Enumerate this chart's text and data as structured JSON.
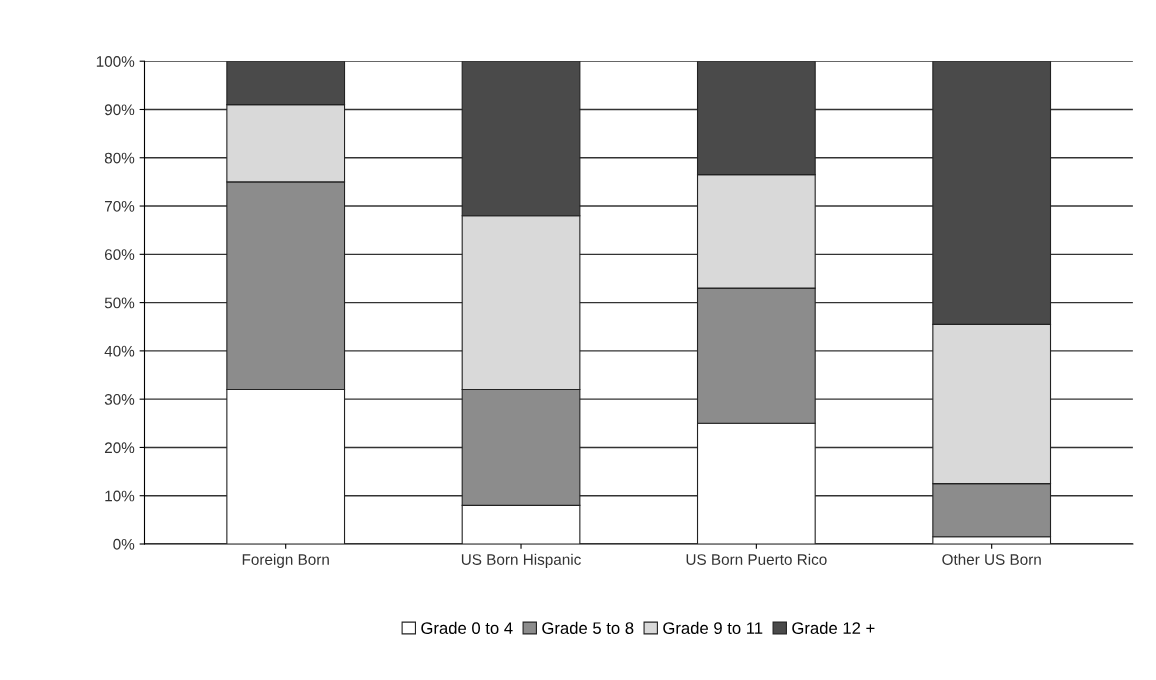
{
  "chart_data": {
    "type": "bar",
    "stacked": true,
    "categories": [
      "Foreign Born",
      "US Born Hispanic",
      "US Born Puerto Rico",
      "Other US Born"
    ],
    "series": [
      {
        "name": "Grade 0 to 4",
        "color": "#ffffff",
        "values": [
          32,
          8,
          25,
          1.5
        ]
      },
      {
        "name": "Grade 5 to 8",
        "color": "#8c8c8c",
        "values": [
          43,
          24,
          28,
          11
        ]
      },
      {
        "name": "Grade 9 to 11",
        "color": "#d9d9d9",
        "values": [
          16,
          36,
          23.5,
          33
        ]
      },
      {
        "name": "Grade 12 +",
        "color": "#4a4a4a",
        "values": [
          9,
          32,
          23.5,
          54.5
        ]
      }
    ],
    "ylim": [
      0,
      100
    ],
    "yticks": [
      {
        "value": 0,
        "label": "0%"
      },
      {
        "value": 10,
        "label": "10%"
      },
      {
        "value": 20,
        "label": "20%"
      },
      {
        "value": 30,
        "label": "30%"
      },
      {
        "value": 40,
        "label": "40%"
      },
      {
        "value": 50,
        "label": "50%"
      },
      {
        "value": 60,
        "label": "60%"
      },
      {
        "value": 70,
        "label": "70%"
      },
      {
        "value": 80,
        "label": "80%"
      },
      {
        "value": 90,
        "label": "90%"
      },
      {
        "value": 100,
        "label": "100%"
      }
    ],
    "grid": "y",
    "legend": "bottom"
  }
}
